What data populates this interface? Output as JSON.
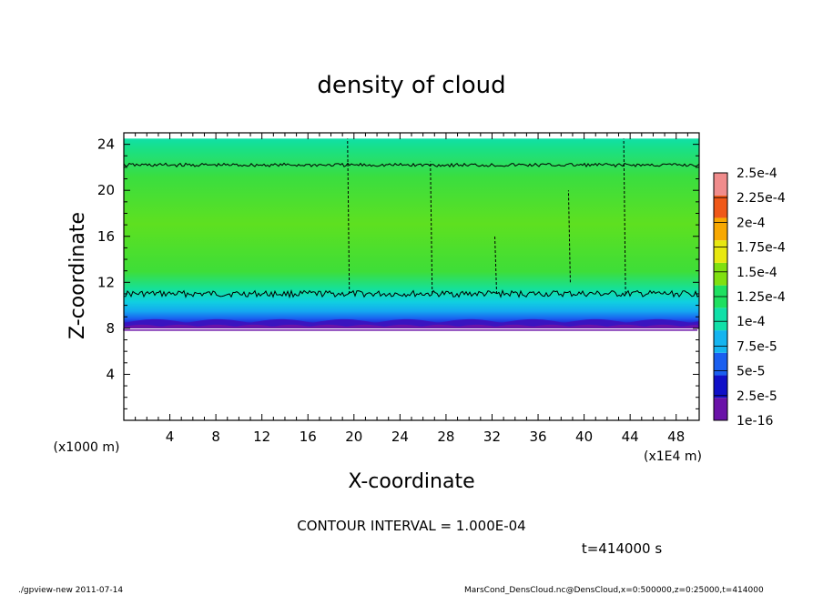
{
  "chart_data": {
    "type": "heatmap",
    "title": "density of cloud",
    "xlabel": "X-coordinate",
    "ylabel": "Z-coordinate",
    "x_unit_label": "(x1E4 m)",
    "y_unit_label": "(x1000 m)",
    "xlim": [
      0,
      50
    ],
    "ylim": [
      0,
      25
    ],
    "x_ticks": [
      4,
      8,
      12,
      16,
      20,
      24,
      28,
      32,
      36,
      40,
      44,
      48
    ],
    "y_ticks": [
      4,
      8,
      12,
      16,
      20,
      24
    ],
    "cloud_layer": {
      "bottom_z": 8,
      "top_z": 24.5,
      "dense_band_z": [
        8,
        10.5
      ],
      "contour_lines_z": [
        11,
        22.2
      ]
    },
    "colorbar": {
      "levels": [
        "1e-16",
        "2.5e-5",
        "5e-5",
        "7.5e-5",
        "1e-4",
        "1.25e-4",
        "1.5e-4",
        "1.75e-4",
        "2e-4",
        "2.25e-4",
        "2.5e-4"
      ],
      "colors": [
        "#6a12a8",
        "#1010c8",
        "#1a5ff0",
        "#14b4f0",
        "#10e0a8",
        "#1ee060",
        "#80e010",
        "#e8e810",
        "#f8a800",
        "#f05818",
        "#f08c8c"
      ]
    },
    "contour_interval": "CONTOUR INTERVAL = 1.000E-04",
    "time_label": "t=414000 s"
  },
  "footer": {
    "left": "./gpview-new  2011-07-14",
    "right": "MarsCond_DensCloud.nc@DensCloud,x=0:500000,z=0:25000,t=414000"
  }
}
